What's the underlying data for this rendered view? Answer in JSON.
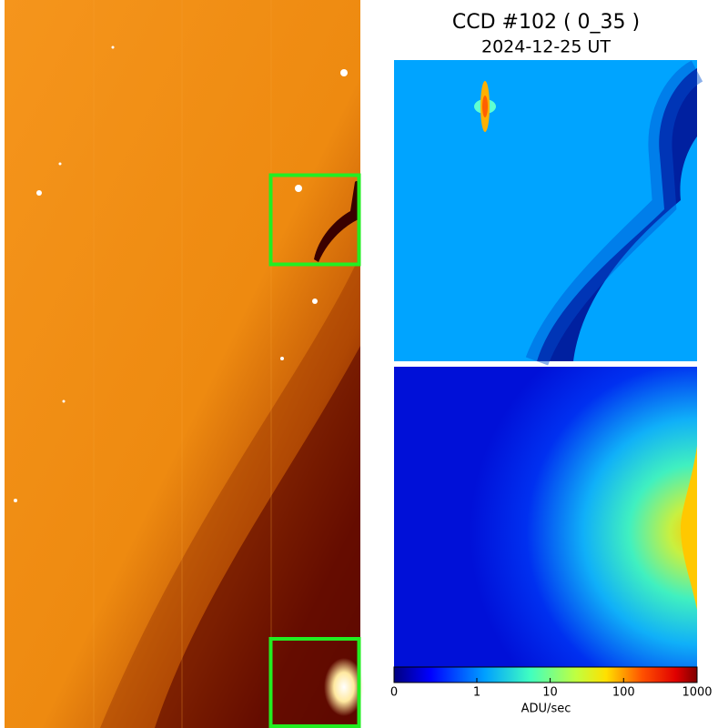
{
  "title": "CCD #102 ( 0_35 )",
  "subtitle": "2024-12-25 UT",
  "colorbar": {
    "label": "ADU/sec",
    "scale": "asinh",
    "xlim": [
      0,
      1000
    ],
    "xticks": [
      0,
      1,
      10,
      100,
      1000
    ]
  }
}
